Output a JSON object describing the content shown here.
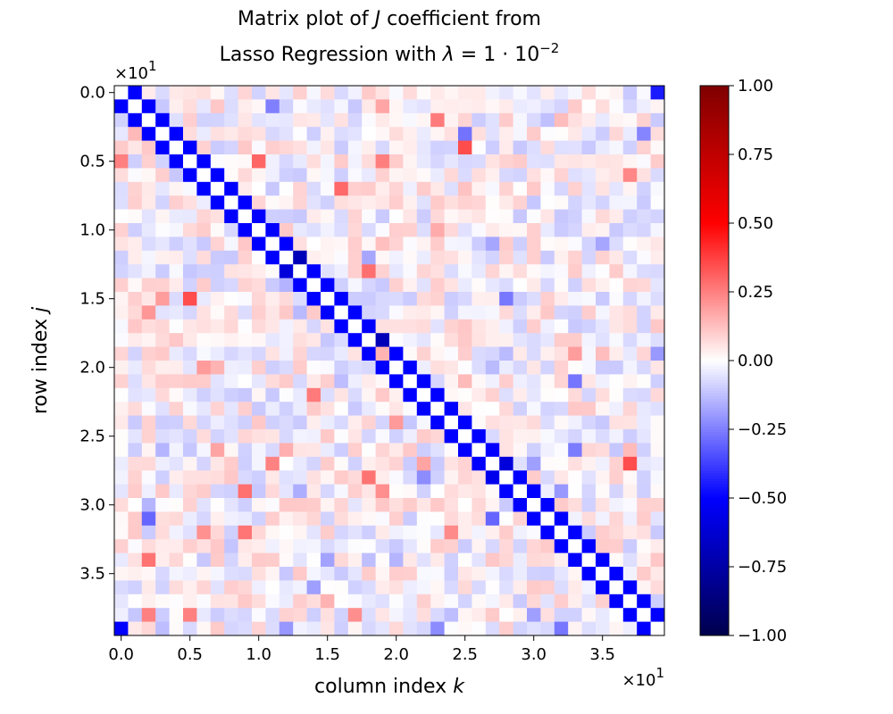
{
  "chart_data": {
    "type": "heatmap",
    "title_lines": [
      [
        "Matrix plot of ",
        "J",
        " coefficient from"
      ],
      [
        "Lasso Regression with ",
        "λ",
        " = 1 · 10",
        "−2"
      ]
    ],
    "xlabel": [
      "column index ",
      "k"
    ],
    "ylabel": [
      "row index ",
      "j"
    ],
    "x_offset_text": [
      "×10",
      "1"
    ],
    "y_offset_text": [
      "×10",
      "1"
    ],
    "xlim": [
      -0.5,
      39.5
    ],
    "ylim": [
      39.5,
      -0.5
    ],
    "x_ticks": [
      0,
      5,
      10,
      15,
      20,
      25,
      30,
      35
    ],
    "x_tick_labels": [
      "0.0",
      "0.5",
      "1.0",
      "1.5",
      "2.0",
      "2.5",
      "3.0",
      "3.5"
    ],
    "y_ticks": [
      0,
      5,
      10,
      15,
      20,
      25,
      30,
      35
    ],
    "y_tick_labels": [
      "0.0",
      "0.5",
      "1.0",
      "1.5",
      "2.0",
      "2.5",
      "3.0",
      "3.5"
    ],
    "colormap": "seismic",
    "vmin": -1.0,
    "vmax": 1.0,
    "colorbar_ticks": [
      1.0,
      0.75,
      0.5,
      0.25,
      0.0,
      -0.25,
      -0.5,
      -0.75,
      -1.0
    ],
    "colorbar_tick_labels": [
      "1.00",
      "0.75",
      "0.50",
      "0.25",
      "0.00",
      "−0.25",
      "−0.50",
      "−0.75",
      "−1.00"
    ],
    "matrix_size": 40,
    "main_diagonal": 0,
    "super_diagonal": -0.5,
    "sub_diagonal": -0.5,
    "corner_values": [
      {
        "row": 0,
        "col": 39,
        "value": -0.45
      },
      {
        "row": 39,
        "col": 0,
        "value": -0.5
      }
    ],
    "darker_off_diagonal": [
      {
        "row": 12,
        "col": 13,
        "value": -0.7
      },
      {
        "row": 13,
        "col": 12,
        "value": -0.6
      },
      {
        "row": 19,
        "col": 19,
        "value": 0.15
      },
      {
        "row": 18,
        "col": 19,
        "value": -0.7
      },
      {
        "row": 19,
        "col": 18,
        "value": -0.5
      },
      {
        "row": 27,
        "col": 28,
        "value": -0.6
      },
      {
        "row": 28,
        "col": 27,
        "value": -0.55
      }
    ],
    "noise_range": [
      -0.3,
      0.3
    ],
    "notable_values": [
      {
        "row": 4,
        "col": 25,
        "value": 0.35
      },
      {
        "row": 5,
        "col": 0,
        "value": 0.25
      },
      {
        "row": 5,
        "col": 10,
        "value": 0.3
      },
      {
        "row": 15,
        "col": 5,
        "value": 0.35
      },
      {
        "row": 27,
        "col": 37,
        "value": 0.35
      },
      {
        "row": 31,
        "col": 2,
        "value": -0.3
      },
      {
        "row": 31,
        "col": 27,
        "value": -0.3
      },
      {
        "row": 38,
        "col": 2,
        "value": 0.25
      },
      {
        "row": 38,
        "col": 5,
        "value": 0.25
      }
    ]
  }
}
